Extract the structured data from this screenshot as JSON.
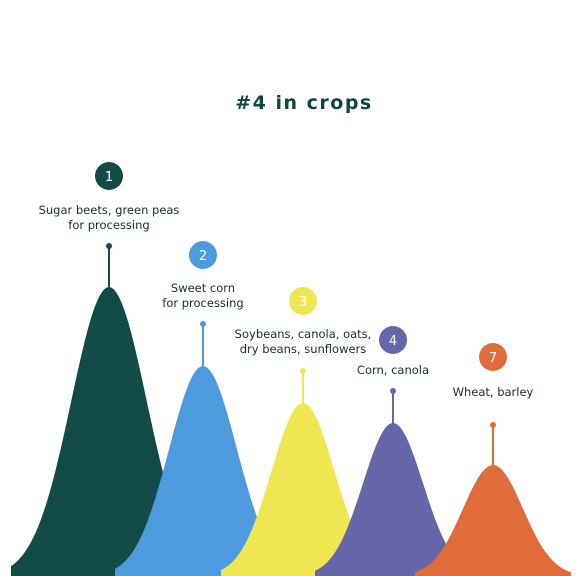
{
  "chart_data": {
    "type": "area",
    "title": "#4 in crops",
    "series": [
      {
        "rank": "1",
        "label_lines": [
          "Sugar beets, green peas",
          "for processing"
        ],
        "color": "#124b47"
      },
      {
        "rank": "2",
        "label_lines": [
          "Sweet corn",
          "for processing"
        ],
        "color": "#4d9ade"
      },
      {
        "rank": "3",
        "label_lines": [
          "Soybeans, canola, oats,",
          "dry beans, sunflowers"
        ],
        "color": "#eee752"
      },
      {
        "rank": "4",
        "label_lines": [
          "Corn, canola"
        ],
        "color": "#6567aa"
      },
      {
        "rank": "7",
        "label_lines": [
          "Wheat, barley"
        ],
        "color": "#df6c3a"
      }
    ]
  }
}
